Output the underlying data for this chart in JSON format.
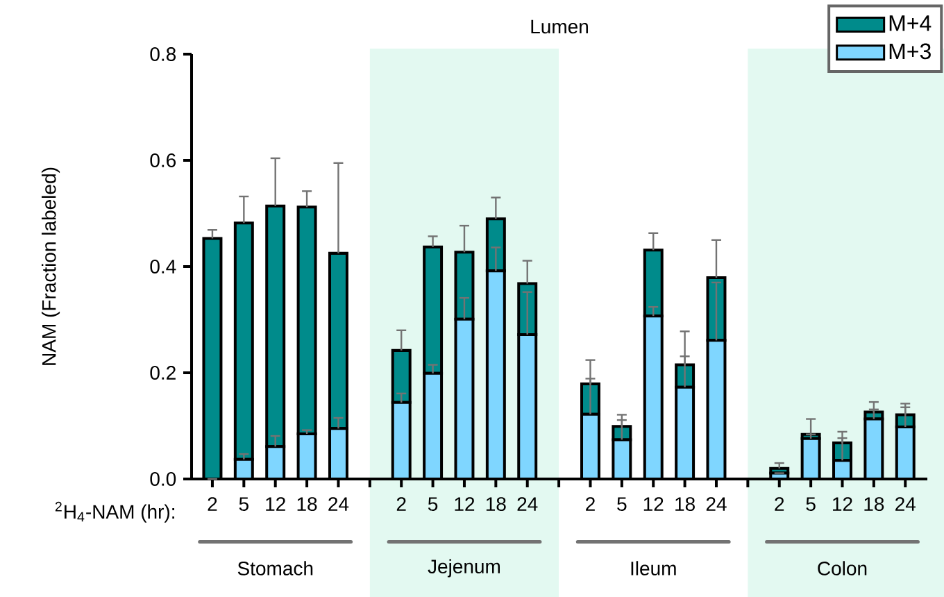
{
  "chart_data": {
    "type": "bar",
    "stacked": true,
    "title": "Lumen",
    "ylabel": "NAM (Fraction labeled)",
    "xlabel": "$^{2}$H$_{4}$-NAM (hr):",
    "categories": [
      "2",
      "5",
      "12",
      "18",
      "24",
      null,
      "2",
      "5",
      "12",
      "18",
      "24",
      null,
      "2",
      "5",
      "12",
      "18",
      "24",
      null,
      "2",
      "5",
      "12",
      "18",
      "24"
    ],
    "series": [
      {
        "name": "M+3",
        "color": "#7fd6ff",
        "values": [
          0,
          0.037,
          0.061,
          0.085,
          0.095,
          null,
          0.144,
          0.199,
          0.301,
          0.392,
          0.272,
          null,
          0.122,
          0.074,
          0.307,
          0.173,
          0.261,
          null,
          0.011,
          0.076,
          0.035,
          0.113,
          0.098
        ],
        "errors": [
          null,
          [
            0.037,
            0.047
          ],
          [
            0.061,
            0.081
          ],
          [
            0.085,
            0.092
          ],
          [
            0.095,
            0.115
          ],
          null,
          [
            0.144,
            0.161
          ],
          [
            0.199,
            0.215
          ],
          [
            0.301,
            0.341
          ],
          [
            0.392,
            0.436
          ],
          [
            0.272,
            0.352
          ],
          null,
          [
            0.122,
            0.189
          ],
          [
            0.074,
            0.111
          ],
          [
            0.307,
            0.324
          ],
          [
            0.173,
            0.231
          ],
          [
            0.261,
            0.37
          ],
          null,
          null,
          [
            0.076,
            0.084
          ],
          [
            0.035,
            0.077
          ],
          [
            0.113,
            0.131
          ],
          [
            0.098,
            0.135
          ]
        ]
      },
      {
        "name": "M+4",
        "color": "#008b8b",
        "values": [
          0.453,
          0.445,
          0.453,
          0.427,
          0.33,
          null,
          0.098,
          0.238,
          0.126,
          0.098,
          0.096,
          null,
          0.057,
          0.025,
          0.124,
          0.042,
          0.118,
          null,
          0.009,
          0.008,
          0.033,
          0.013,
          0.023
        ],
        "errors": [
          [
            0.453,
            0.469
          ],
          [
            0.482,
            0.532
          ],
          [
            0.514,
            0.604
          ],
          [
            0.512,
            0.542
          ],
          [
            0.425,
            0.595
          ],
          null,
          [
            0.242,
            0.28
          ],
          [
            0.437,
            0.457
          ],
          [
            0.427,
            0.477
          ],
          [
            0.49,
            0.53
          ],
          [
            0.368,
            0.411
          ],
          null,
          [
            0.179,
            0.224
          ],
          [
            0.099,
            0.121
          ],
          [
            0.431,
            0.463
          ],
          [
            0.215,
            0.278
          ],
          [
            0.379,
            0.45
          ],
          null,
          [
            0.02,
            0.03
          ],
          [
            0.084,
            0.113
          ],
          [
            0.068,
            0.089
          ],
          [
            0.126,
            0.145
          ],
          [
            0.121,
            0.142
          ]
        ]
      }
    ],
    "ylim": [
      0,
      0.8
    ],
    "yticks": [
      {
        "value": 0,
        "label": "0.0"
      },
      {
        "value": 0.2,
        "label": "0.2"
      },
      {
        "value": 0.4,
        "label": "0.4"
      },
      {
        "value": 0.6,
        "label": "0.6"
      },
      {
        "value": 0.8,
        "label": "0.8"
      }
    ],
    "annotations": [
      "Stomach",
      "Jejenum",
      "Ileum",
      "Colon"
    ],
    "legend": "top right"
  }
}
